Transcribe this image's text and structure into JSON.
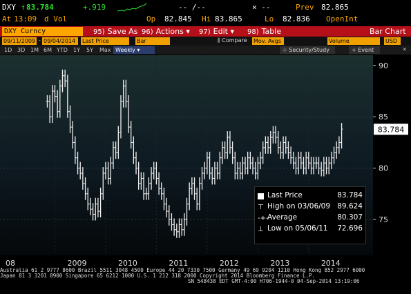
{
  "header": {
    "ticker": "DXY",
    "last": "83.784",
    "change": "+.919",
    "range_sep": "-- /--",
    "x_sep": "× --",
    "prev_label": "Prev",
    "prev_value": "82.865",
    "time_label": "At",
    "time": "13:09",
    "d_vol": "d Vol",
    "op_label": "Op",
    "op_value": "82.845",
    "hi_label": "Hi",
    "hi_value": "83.865",
    "lo_label": "Lo",
    "lo_value": "82.836",
    "openint_label": "OpenInt"
  },
  "toolbar": {
    "security": "DXY Curncy",
    "save_num": "95)",
    "save_label": "Save As",
    "actions_num": "96)",
    "actions_label": "Actions",
    "edit_num": "97)",
    "edit_label": "Edit",
    "table_num": "98)",
    "table_label": "Table",
    "chart_type": "Bar Chart"
  },
  "fields": {
    "start_date": "09/11/2009",
    "end_date": "09/04/2014",
    "price_field": "Last Price",
    "bar_type": "Bar",
    "compare_label": "Compare",
    "mov_avgs": "Mov. Avgs",
    "volume": "Volume",
    "currency": "USD"
  },
  "periods": {
    "items": [
      "1D",
      "3D",
      "1M",
      "6M",
      "YTD",
      "1Y",
      "5Y",
      "Max"
    ],
    "selected": "Weekly",
    "security_study": "Security/Study",
    "event": "Event"
  },
  "axis": {
    "y_ticks": [
      "90",
      "85",
      "80",
      "75"
    ],
    "x_ticks": [
      "08",
      "2009",
      "2010",
      "2011",
      "2012",
      "2013",
      "2014"
    ],
    "current_value": "83.784"
  },
  "legend": {
    "last_label": "Last Price",
    "last_value": "83.784",
    "high_label": "High on 03/06/09",
    "high_value": "89.624",
    "avg_label": "Average",
    "avg_value": "80.307",
    "low_label": "Low on 05/06/11",
    "low_value": "72.696"
  },
  "footer": {
    "line1": "Australia 61 2 9777 8600 Brazil 5511 3048 4500 Europe 44 20 7330 7500 Germany 49 69 9204 1210 Hong Kong 852 2977 6000",
    "line2": "Japan 81 3 3201 8900          Singapore 65 6212 1000         U.S. 1 212 318 2000       Copyright 2014 Bloomberg Finance L.P.",
    "line3": "SN 548438 EDT  GMT-4:00 H706-1944-0 04-Sep-2014 13:19:06"
  },
  "colors": {
    "orange": "#ffa500",
    "red_bar": "#b5101a",
    "green": "#2ee52e"
  },
  "chart_data": {
    "type": "bar",
    "title": "",
    "series_name": "Last Price",
    "ylim": [
      71.5,
      91.0
    ],
    "y_ticks": [
      90,
      85,
      80,
      75
    ],
    "x_ticks": [
      "08",
      "2009",
      "2010",
      "2011",
      "2012",
      "2013",
      "2014"
    ],
    "x": [
      2008.85,
      2008.9,
      2008.95,
      2009.0,
      2009.05,
      2009.1,
      2009.15,
      2009.2,
      2009.25,
      2009.3,
      2009.35,
      2009.4,
      2009.45,
      2009.5,
      2009.55,
      2009.6,
      2009.65,
      2009.7,
      2009.75,
      2009.8,
      2009.85,
      2009.9,
      2009.95,
      2010.0,
      2010.05,
      2010.1,
      2010.15,
      2010.2,
      2010.25,
      2010.3,
      2010.35,
      2010.4,
      2010.45,
      2010.5,
      2010.55,
      2010.6,
      2010.65,
      2010.7,
      2010.75,
      2010.8,
      2010.85,
      2010.9,
      2010.95,
      2011.0,
      2011.05,
      2011.1,
      2011.15,
      2011.2,
      2011.25,
      2011.3,
      2011.35,
      2011.4,
      2011.45,
      2011.5,
      2011.55,
      2011.6,
      2011.65,
      2011.7,
      2011.75,
      2011.8,
      2011.85,
      2011.9,
      2011.95,
      2012.0,
      2012.05,
      2012.1,
      2012.15,
      2012.2,
      2012.25,
      2012.3,
      2012.35,
      2012.4,
      2012.45,
      2012.5,
      2012.55,
      2012.6,
      2012.65,
      2012.7,
      2012.75,
      2012.8,
      2012.85,
      2012.9,
      2012.95,
      2013.0,
      2013.05,
      2013.1,
      2013.15,
      2013.2,
      2013.25,
      2013.3,
      2013.35,
      2013.4,
      2013.45,
      2013.5,
      2013.55,
      2013.6,
      2013.65,
      2013.7,
      2013.75,
      2013.8,
      2013.85,
      2013.9,
      2013.95,
      2014.0,
      2014.05,
      2014.1,
      2014.15,
      2014.2,
      2014.25,
      2014.3,
      2014.35,
      2014.4,
      2014.45,
      2014.5,
      2014.55,
      2014.6,
      2014.65
    ],
    "y": [
      86.5,
      85.0,
      87.5,
      87.0,
      85.5,
      88.0,
      89.0,
      88.5,
      85.5,
      84.0,
      82.5,
      81.0,
      80.0,
      79.5,
      78.5,
      77.5,
      76.5,
      76.0,
      75.5,
      76.5,
      75.8,
      77.5,
      79.5,
      80.0,
      79.0,
      80.5,
      82.0,
      81.5,
      83.5,
      86.5,
      88.0,
      86.5,
      84.0,
      82.5,
      81.0,
      80.0,
      78.5,
      79.0,
      77.5,
      77.5,
      78.5,
      79.5,
      80.0,
      79.0,
      78.0,
      77.5,
      76.5,
      75.8,
      75.0,
      74.5,
      74.0,
      73.8,
      74.5,
      74.0,
      75.0,
      76.5,
      78.0,
      78.5,
      77.5,
      76.5,
      78.5,
      79.5,
      80.0,
      81.0,
      79.5,
      79.0,
      80.0,
      79.5,
      81.0,
      82.0,
      81.5,
      83.0,
      82.0,
      81.0,
      79.5,
      80.0,
      79.5,
      80.5,
      80.0,
      81.0,
      80.5,
      80.0,
      79.5,
      80.5,
      81.0,
      82.0,
      82.5,
      82.0,
      83.0,
      83.5,
      83.0,
      82.0,
      81.5,
      82.5,
      82.0,
      81.5,
      81.0,
      80.5,
      80.0,
      81.0,
      80.5,
      80.0,
      81.0,
      80.5,
      80.0,
      80.5,
      80.5,
      80.0,
      79.8,
      80.5,
      80.0,
      80.5,
      81.0,
      81.5,
      82.0,
      82.5,
      83.8
    ]
  }
}
